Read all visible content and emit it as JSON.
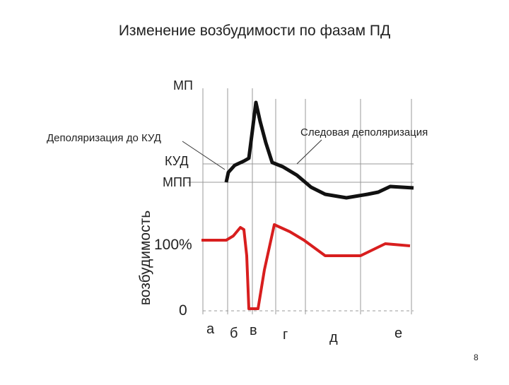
{
  "title": "Изменение возбудимости по фазам ПД",
  "diagram": {
    "labels": {
      "mp": "МП",
      "kud": "КУД",
      "mpp": "МПП",
      "excitability": "возбудимость",
      "hundred": "100%",
      "zero": "0"
    },
    "callouts": {
      "depolarization_to_kud": "Деполяризация до КУД",
      "trace_depolarization": "Следовая деполяризация"
    },
    "phases": [
      "а",
      "б",
      "в",
      "г",
      "д",
      "е"
    ]
  },
  "page_number": "8"
}
